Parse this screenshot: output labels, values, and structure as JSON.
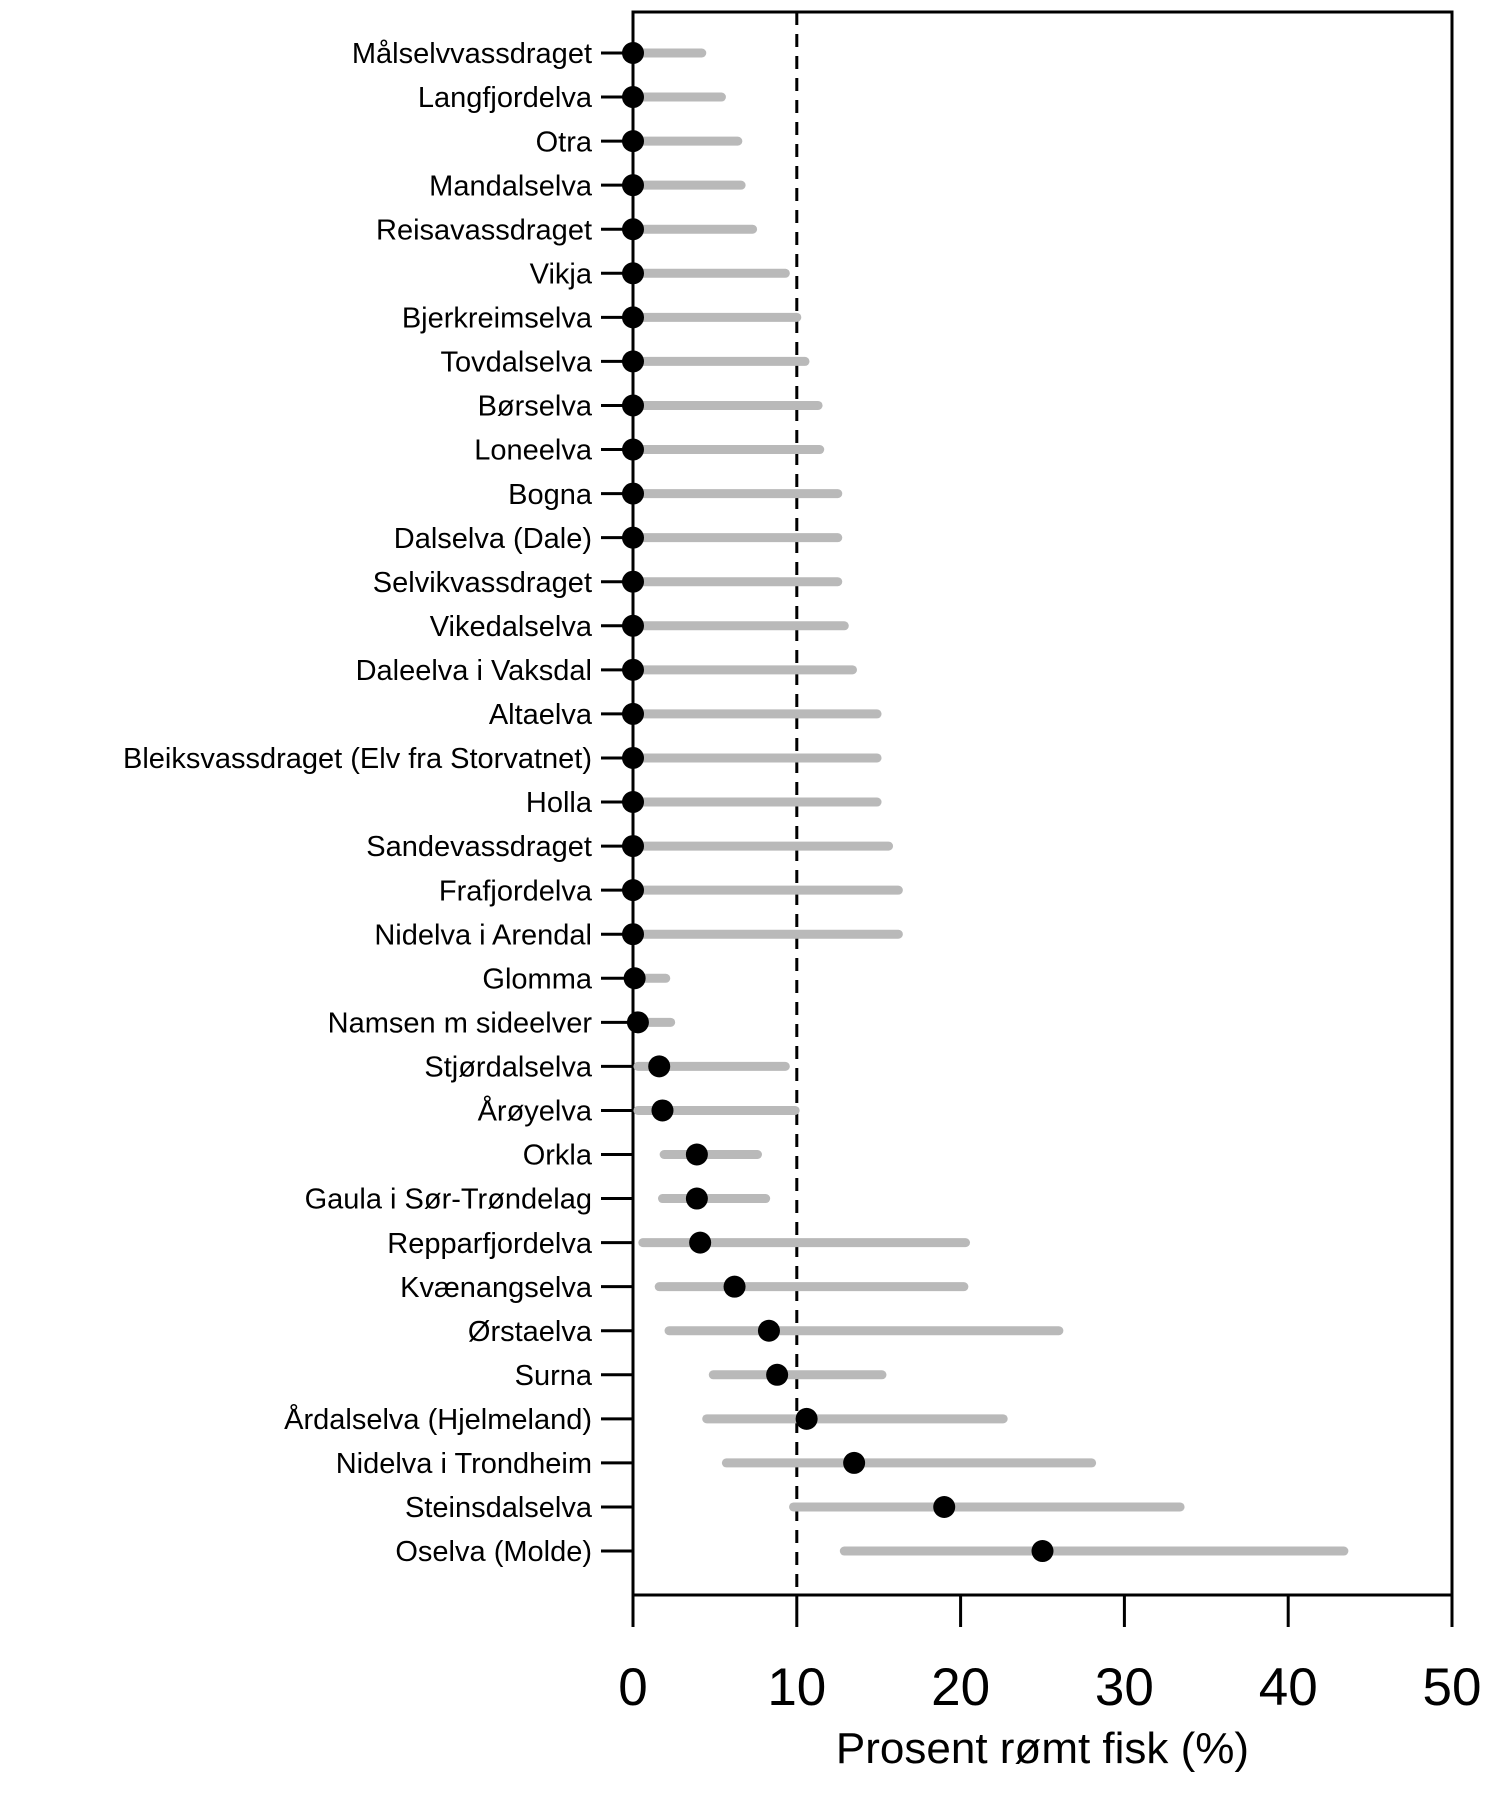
{
  "chart_data": {
    "type": "scatter",
    "variant": "horizontal-dot-plot-with-confidence-intervals",
    "title": "",
    "xlabel": "Prosent rømt fisk (%)",
    "ylabel": "",
    "xlim": [
      0,
      50
    ],
    "x_ticks": [
      0,
      10,
      20,
      30,
      40,
      50
    ],
    "grid": false,
    "legend_position": "none",
    "reference_line_x": 10,
    "reference_line_style": "dashed",
    "colors": {
      "dot": "#000000",
      "interval_bar": "#b9b9b9",
      "axis": "#000000",
      "reference_line": "#000000",
      "background": "#ffffff"
    },
    "rows": [
      {
        "river": "Målselvvassdraget",
        "estimate": 0,
        "ci_low": 0,
        "ci_high": 4.2
      },
      {
        "river": "Langfjordelva",
        "estimate": 0,
        "ci_low": 0,
        "ci_high": 5.4
      },
      {
        "river": "Otra",
        "estimate": 0,
        "ci_low": 0,
        "ci_high": 6.4
      },
      {
        "river": "Mandalselva",
        "estimate": 0,
        "ci_low": 0,
        "ci_high": 6.6
      },
      {
        "river": "Reisavassdraget",
        "estimate": 0,
        "ci_low": 0,
        "ci_high": 7.3
      },
      {
        "river": "Vikja",
        "estimate": 0,
        "ci_low": 0,
        "ci_high": 9.3
      },
      {
        "river": "Bjerkreimselva",
        "estimate": 0,
        "ci_low": 0,
        "ci_high": 10.0
      },
      {
        "river": "Tovdalselva",
        "estimate": 0,
        "ci_low": 0,
        "ci_high": 10.5
      },
      {
        "river": "Børselva",
        "estimate": 0,
        "ci_low": 0,
        "ci_high": 11.3
      },
      {
        "river": "Loneelva",
        "estimate": 0,
        "ci_low": 0,
        "ci_high": 11.4
      },
      {
        "river": "Bogna",
        "estimate": 0,
        "ci_low": 0,
        "ci_high": 12.5
      },
      {
        "river": "Dalselva (Dale)",
        "estimate": 0,
        "ci_low": 0,
        "ci_high": 12.5
      },
      {
        "river": "Selvikvassdraget",
        "estimate": 0,
        "ci_low": 0,
        "ci_high": 12.5
      },
      {
        "river": "Vikedalselva",
        "estimate": 0,
        "ci_low": 0,
        "ci_high": 12.9
      },
      {
        "river": "Daleelva i Vaksdal",
        "estimate": 0,
        "ci_low": 0,
        "ci_high": 13.4
      },
      {
        "river": "Altaelva",
        "estimate": 0,
        "ci_low": 0,
        "ci_high": 14.9
      },
      {
        "river": "Bleiksvassdraget (Elv fra Storvatnet)",
        "estimate": 0,
        "ci_low": 0,
        "ci_high": 14.9
      },
      {
        "river": "Holla",
        "estimate": 0,
        "ci_low": 0,
        "ci_high": 14.9
      },
      {
        "river": "Sandevassdraget",
        "estimate": 0,
        "ci_low": 0,
        "ci_high": 15.6
      },
      {
        "river": "Frafjordelva",
        "estimate": 0,
        "ci_low": 0,
        "ci_high": 16.2
      },
      {
        "river": "Nidelva i Arendal",
        "estimate": 0,
        "ci_low": 0,
        "ci_high": 16.2
      },
      {
        "river": "Glomma",
        "estimate": 0.1,
        "ci_low": 0,
        "ci_high": 2.0
      },
      {
        "river": "Namsen m sideelver",
        "estimate": 0.3,
        "ci_low": 0,
        "ci_high": 2.3
      },
      {
        "river": "Stjørdalselva",
        "estimate": 1.6,
        "ci_low": 0.3,
        "ci_high": 9.3
      },
      {
        "river": "Årøyelva",
        "estimate": 1.8,
        "ci_low": 0.3,
        "ci_high": 9.9
      },
      {
        "river": "Orkla",
        "estimate": 3.9,
        "ci_low": 1.9,
        "ci_high": 7.6
      },
      {
        "river": "Gaula i Sør-Trøndelag",
        "estimate": 3.9,
        "ci_low": 1.8,
        "ci_high": 8.1
      },
      {
        "river": "Repparfjordelva",
        "estimate": 4.1,
        "ci_low": 0.6,
        "ci_high": 20.3
      },
      {
        "river": "Kvænangselva",
        "estimate": 6.2,
        "ci_low": 1.6,
        "ci_high": 20.2
      },
      {
        "river": "Ørstaelva",
        "estimate": 8.3,
        "ci_low": 2.2,
        "ci_high": 26.0
      },
      {
        "river": "Surna",
        "estimate": 8.8,
        "ci_low": 4.9,
        "ci_high": 15.2
      },
      {
        "river": "Årdalselva (Hjelmeland)",
        "estimate": 10.6,
        "ci_low": 4.5,
        "ci_high": 22.6
      },
      {
        "river": "Nidelva i Trondheim",
        "estimate": 13.5,
        "ci_low": 5.7,
        "ci_high": 28.0
      },
      {
        "river": "Steinsdalselva",
        "estimate": 19.0,
        "ci_low": 9.8,
        "ci_high": 33.4
      },
      {
        "river": "Oselva (Molde)",
        "estimate": 25.0,
        "ci_low": 12.9,
        "ci_high": 43.4
      }
    ]
  }
}
